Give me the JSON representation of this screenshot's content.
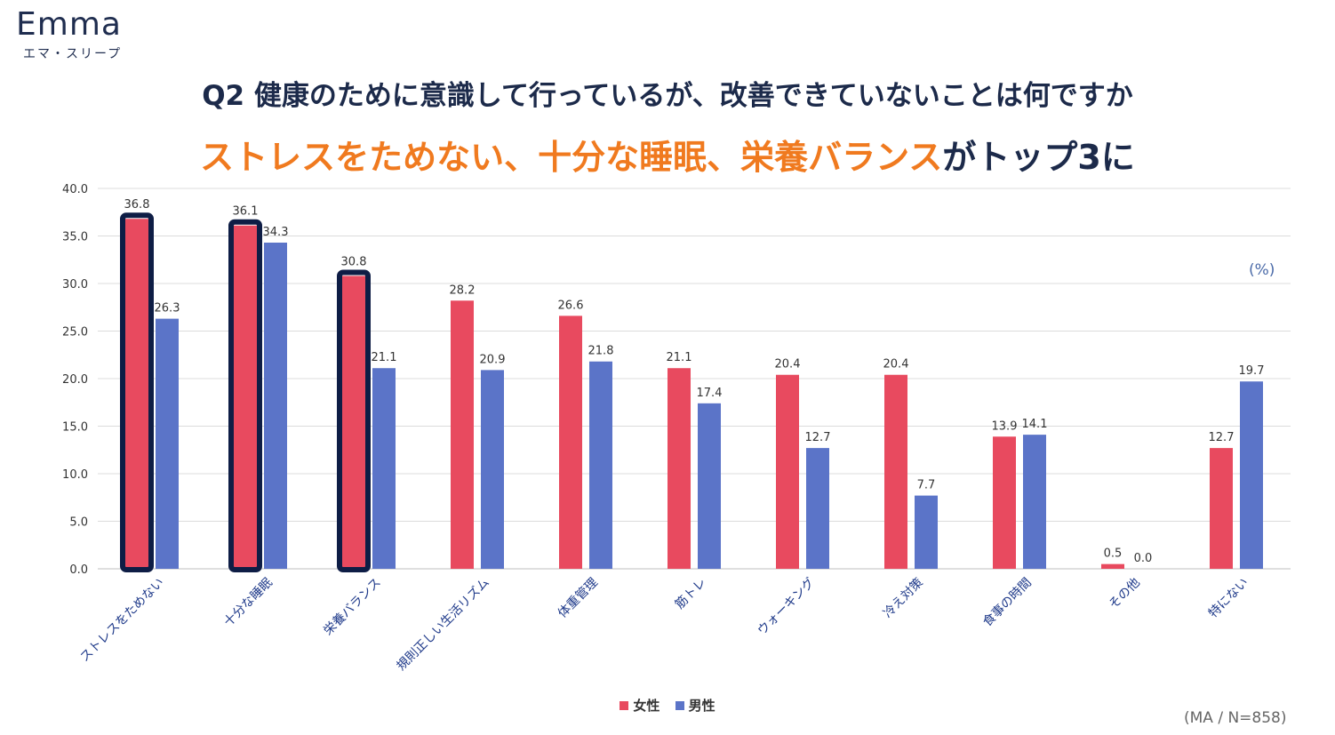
{
  "logo": {
    "name": "Emma",
    "subtitle": "エマ・スリープ"
  },
  "title": "Q2 健康のために意識して行っているが、改善できていないことは何ですか",
  "subtitle": {
    "highlight": "ストレスをためない、十分な睡眠、栄養バランス",
    "rest": "がトップ3に"
  },
  "unit_label": "(%)",
  "note": "(MA / N=858)",
  "colors": {
    "female": "#e84a5f",
    "male": "#5b74c8",
    "highlight_border": "#0e1d45",
    "accent": "#f07a1f"
  },
  "chart_data": {
    "type": "bar",
    "title": "",
    "xlabel": "",
    "ylabel": "",
    "ylim": [
      0,
      40
    ],
    "yticks": [
      "0.0",
      "5.0",
      "10.0",
      "15.0",
      "20.0",
      "25.0",
      "30.0",
      "35.0",
      "40.0"
    ],
    "grid": true,
    "legend_position": "bottom",
    "categories": [
      "ストレスをためない",
      "十分な睡眠",
      "栄養バランス",
      "規則正しい生活リズム",
      "体重管理",
      "筋トレ",
      "ウォーキング",
      "冷え対策",
      "食事の時間",
      "その他",
      "特にない"
    ],
    "series": [
      {
        "name": "女性",
        "values": [
          36.8,
          36.1,
          30.8,
          28.2,
          26.6,
          21.1,
          20.4,
          20.4,
          13.9,
          0.5,
          12.7
        ]
      },
      {
        "name": "男性",
        "values": [
          26.3,
          34.3,
          21.1,
          20.9,
          21.8,
          17.4,
          12.7,
          7.7,
          14.1,
          0.0,
          19.7
        ]
      }
    ],
    "highlighted_categories": [
      0,
      1,
      2
    ]
  }
}
